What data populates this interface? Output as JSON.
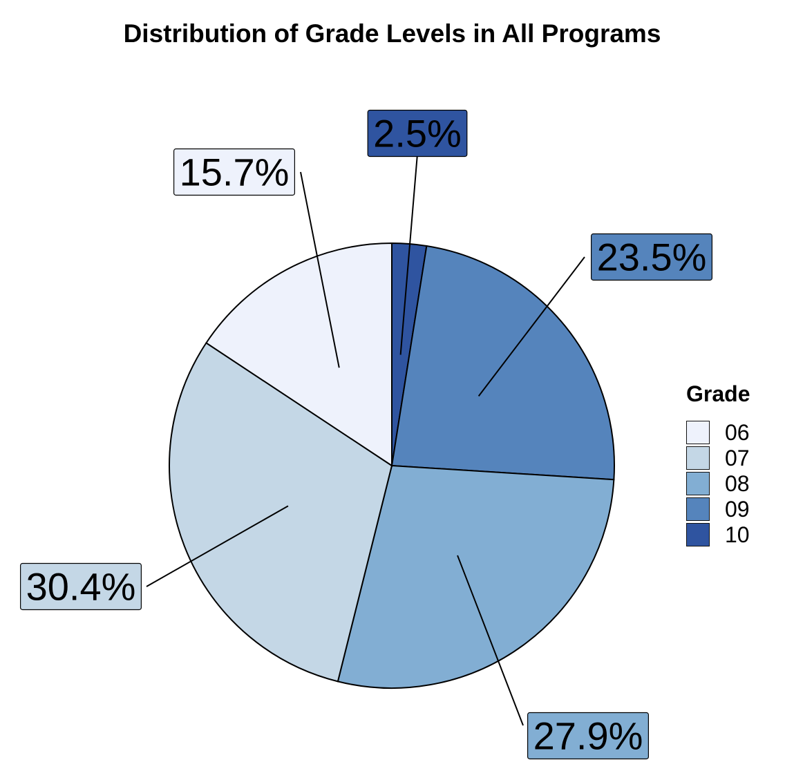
{
  "chart_data": {
    "type": "pie",
    "title": "Distribution of Grade Levels in All Programs",
    "legend_title": "Grade",
    "legend_position": "right",
    "categories": [
      "06",
      "07",
      "08",
      "09",
      "10"
    ],
    "values": [
      15.7,
      30.4,
      27.9,
      23.5,
      2.5
    ],
    "labels": [
      "15.7%",
      "30.4%",
      "27.9%",
      "23.5%",
      "2.5%"
    ],
    "colors": [
      "#eef2fc",
      "#c4d7e6",
      "#82aed3",
      "#5584bc",
      "#2f54a0"
    ],
    "start_category": "10",
    "direction": "clockwise"
  }
}
